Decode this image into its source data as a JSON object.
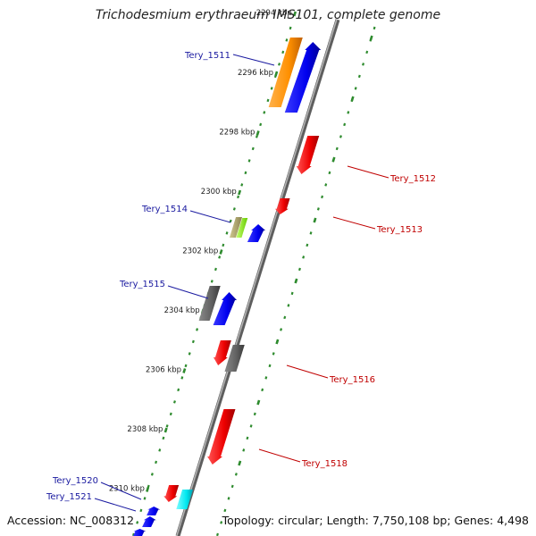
{
  "title": "Trichodesmium erythraeum IMS101, complete genome",
  "footer": {
    "accession": "Accession: NC_008312",
    "summary": "Topology: circular; Length: 7,750,108 bp; Genes: 4,498"
  },
  "colors": {
    "backbone": "#8c8c8c",
    "tick": "#2e8b2e",
    "forward_label": "#1a1aa0",
    "reverse_label": "#c00000"
  },
  "ticks": [
    {
      "label": "2294 kbp",
      "faded": true
    },
    {
      "label": "2296 kbp"
    },
    {
      "label": "2298 kbp"
    },
    {
      "label": "2300 kbp"
    },
    {
      "label": "2302 kbp"
    },
    {
      "label": "2304 kbp"
    },
    {
      "label": "2306 kbp"
    },
    {
      "label": "2308 kbp"
    },
    {
      "label": "2310 kbp"
    }
  ],
  "genes": [
    {
      "label": "Tery_1511",
      "strand": "forward"
    },
    {
      "label": "Tery_1512",
      "strand": "reverse"
    },
    {
      "label": "Tery_1513",
      "strand": "reverse"
    },
    {
      "label": "Tery_1514",
      "strand": "forward"
    },
    {
      "label": "Tery_1515",
      "strand": "forward"
    },
    {
      "label": "Tery_1516",
      "strand": "reverse"
    },
    {
      "label": "Tery_1518",
      "strand": "reverse"
    },
    {
      "label": "Tery_1520",
      "strand": "forward"
    },
    {
      "label": "Tery_1521",
      "strand": "forward"
    }
  ]
}
